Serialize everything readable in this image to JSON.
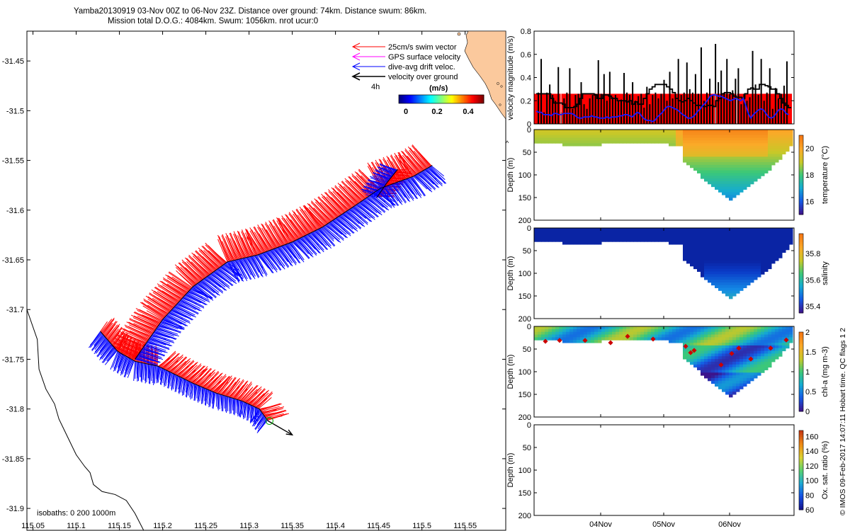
{
  "header": {
    "line1": "Yamba20130919 03-Nov 00Z to 06-Nov 23Z. Distance over ground: 74km. Distance swum: 86km.",
    "line2": "Mission total D.O.G.: 4084km. Swum: 1056km. nrot ucur:0"
  },
  "footer_note": "© IMOS 09-Feb-2017 14:07:11 Hobart time. QC flags 1  2",
  "colors": {
    "swim": "#ff0000",
    "gps": "#ff00ff",
    "drift": "#0000ff",
    "ground": "#000000",
    "land": "#fbc99d",
    "vel_fill": "#ff0000"
  },
  "chart_data": [
    {
      "type": "line",
      "name": "map",
      "x_ticks": [
        "115.05",
        "115.1",
        "115.15",
        "115.2",
        "115.25",
        "115.3",
        "115.35",
        "115.4",
        "115.45",
        "115.5",
        "115.55"
      ],
      "y_ticks": [
        "-31.45",
        "-31.5",
        "-31.55",
        "-31.6",
        "-31.65",
        "-31.7",
        "-31.75",
        "-31.8",
        "-31.85",
        "-31.9"
      ],
      "xlim": [
        115.043,
        115.597
      ],
      "ylim": [
        -31.922,
        -31.42
      ],
      "legend": {
        "items": [
          "25cm/s swim vector",
          "GPS surface velocity",
          "dive-avg drift veloc.",
          "velocity over ground"
        ],
        "ref_label": "4h",
        "colorbar_label": "(m/s)",
        "colorbar_ticks": [
          "0",
          "0.2",
          "0.4"
        ]
      },
      "isobaths_label": "isobaths: 0   200   1000m",
      "track": [
        [
          115.195,
          -31.757
        ],
        [
          115.235,
          -31.774
        ],
        [
          115.262,
          -31.784
        ],
        [
          115.292,
          -31.792
        ],
        [
          115.312,
          -31.8
        ],
        [
          115.322,
          -31.812
        ]
      ],
      "track_west": [
        [
          115.128,
          -31.722
        ],
        [
          115.148,
          -31.742
        ],
        [
          115.168,
          -31.752
        ],
        [
          115.195,
          -31.757
        ]
      ],
      "track_main": [
        [
          115.168,
          -31.75
        ],
        [
          115.2,
          -31.71
        ],
        [
          115.235,
          -31.677
        ],
        [
          115.275,
          -31.652
        ],
        [
          115.31,
          -31.645
        ],
        [
          115.35,
          -31.632
        ],
        [
          115.385,
          -31.617
        ],
        [
          115.42,
          -31.597
        ],
        [
          115.452,
          -31.578
        ],
        [
          115.49,
          -31.566
        ],
        [
          115.512,
          -31.555
        ]
      ],
      "track_north": [
        [
          115.448,
          -31.587
        ],
        [
          115.46,
          -31.572
        ],
        [
          115.472,
          -31.559
        ]
      ],
      "ground_arrow": {
        "from": [
          115.322,
          -31.812
        ],
        "to": [
          115.35,
          -31.826
        ]
      },
      "coast": [
        [
          115.043,
          -31.7
        ],
        [
          115.055,
          -31.73
        ],
        [
          115.057,
          -31.76
        ],
        [
          115.065,
          -31.78
        ],
        [
          115.075,
          -31.795
        ],
        [
          115.08,
          -31.81
        ],
        [
          115.09,
          -31.828
        ],
        [
          115.1,
          -31.846
        ],
        [
          115.11,
          -31.858
        ],
        [
          115.116,
          -31.864
        ],
        [
          115.12,
          -31.876
        ],
        [
          115.13,
          -31.883
        ],
        [
          115.145,
          -31.886
        ],
        [
          115.158,
          -31.892
        ],
        [
          115.168,
          -31.905
        ],
        [
          115.178,
          -31.922
        ]
      ]
    },
    {
      "type": "bar",
      "name": "velocity-magnitude",
      "ylabel": "velocity magnitude (m/s)",
      "ylim": [
        0,
        0.8
      ],
      "y_ticks": [
        "0",
        "0.2",
        "0.4",
        "0.6",
        "0.8"
      ],
      "fill_level": 0.26,
      "bars": [
        0.27,
        0.56,
        0.1,
        0.27,
        0.34,
        0.25,
        0.2,
        0.49,
        0.1,
        0.22,
        0.27,
        0.48,
        0.13,
        0.25,
        0.26,
        0.36,
        0.17,
        0.13,
        0.22,
        0.25,
        0.26,
        0.55,
        0.26,
        0.43,
        0.2,
        0.45,
        0.23,
        0.25,
        0.2,
        0.21,
        0.44,
        0.27,
        0.25,
        0.36,
        0.2,
        0.24,
        0.26,
        0.14,
        0.32,
        0.17,
        0.25,
        0.27,
        0.22,
        0.26,
        0.38,
        0.2,
        0.45,
        0.22,
        0.26,
        0.56,
        0.25,
        0.27,
        0.53,
        0.3,
        0.27,
        0.43,
        0.26,
        0.66,
        0.2,
        0.27,
        0.39,
        0.25,
        0.69,
        0.36,
        0.46,
        0.27,
        0.56,
        0.26,
        0.29,
        0.39,
        0.48,
        0.17,
        0.26,
        0.2,
        0.23,
        0.63,
        0.34,
        0.25,
        0.56,
        0.2,
        0.27,
        0.48,
        0.13,
        0.31,
        0.22,
        0.26,
        0.33,
        0.54
      ],
      "ground_speed": [
        0.26,
        0.26,
        0.26,
        0.26,
        0.26,
        0.22,
        0.18,
        0.18,
        0.18,
        0.17,
        0.14,
        0.14,
        0.14,
        0.15,
        0.17,
        0.22,
        0.26,
        0.26,
        0.26,
        0.26,
        0.25,
        0.22,
        0.22,
        0.25,
        0.25,
        0.24,
        0.22,
        0.22,
        0.2,
        0.2,
        0.2,
        0.19,
        0.2,
        0.17,
        0.19,
        0.17,
        0.17,
        0.22,
        0.26,
        0.3,
        0.32,
        0.34,
        0.34,
        0.34,
        0.34,
        0.32,
        0.3,
        0.27,
        0.22,
        0.2,
        0.19,
        0.2,
        0.22,
        0.2,
        0.18,
        0.16,
        0.16,
        0.15,
        0.15,
        0.16,
        0.16,
        0.15,
        0.2,
        0.22,
        0.26,
        0.27,
        0.27,
        0.26,
        0.24,
        0.23,
        0.23,
        0.22,
        0.26,
        0.3,
        0.31,
        0.3,
        0.3,
        0.34,
        0.34,
        0.33,
        0.32,
        0.3,
        0.3,
        0.26,
        0.22,
        0.18,
        0.16,
        0.14
      ],
      "drift_speed": [
        0.11,
        0.1,
        0.1,
        0.08,
        0.08,
        0.08,
        0.07,
        0.09,
        0.09,
        0.08,
        0.08,
        0.09,
        0.09,
        0.09,
        0.09,
        0.08,
        0.06,
        0.05,
        0.05,
        0.06,
        0.06,
        0.06,
        0.07,
        0.06,
        0.06,
        0.05,
        0.05,
        0.05,
        0.06,
        0.05,
        0.06,
        0.06,
        0.06,
        0.07,
        0.07,
        0.08,
        0.08,
        0.07,
        0.06,
        0.08,
        0.1,
        0.09,
        0.06,
        0.04,
        0.03,
        0.03,
        0.02,
        0.03,
        0.06,
        0.08,
        0.1,
        0.13,
        0.15,
        0.15,
        0.14,
        0.13,
        0.12,
        0.1,
        0.08,
        0.07,
        0.05,
        0.05,
        0.06,
        0.08,
        0.11,
        0.13,
        0.16,
        0.18,
        0.21,
        0.24,
        0.25,
        0.25,
        0.24,
        0.24,
        0.23,
        0.22,
        0.21,
        0.2,
        0.21,
        0.22,
        0.21,
        0.2,
        0.22,
        0.16,
        0.09,
        0.05,
        0.08,
        0.1,
        0.12,
        0.13,
        0.12,
        0.09,
        0.06,
        0.05,
        0.06,
        0.09,
        0.12,
        0.13,
        0.12,
        0.09,
        0.08
      ]
    },
    {
      "type": "heatmap",
      "name": "temperature",
      "ylabel": "Depth (m)",
      "colorbar_label": "temperature (°C)",
      "ylim": [
        200,
        0
      ],
      "y_ticks": [
        "0",
        "50",
        "100",
        "150",
        "200"
      ],
      "cbar_ticks": [
        "16",
        "18",
        "20"
      ],
      "cbar_range": [
        15.0,
        21.0
      ]
    },
    {
      "type": "heatmap",
      "name": "salinity",
      "ylabel": "Depth (m)",
      "colorbar_label": "salinity",
      "ylim": [
        200,
        0
      ],
      "y_ticks": [
        "0",
        "50",
        "100",
        "150",
        "200"
      ],
      "cbar_ticks": [
        "35.4",
        "35.6",
        "35.8"
      ],
      "cbar_range": [
        35.35,
        35.95
      ]
    },
    {
      "type": "heatmap",
      "name": "chl-a",
      "ylabel": "Depth (m)",
      "colorbar_label": "chl-a (mg m-3)",
      "ylim": [
        200,
        0
      ],
      "y_ticks": [
        "0",
        "50",
        "100",
        "150",
        "200"
      ],
      "cbar_ticks": [
        "0",
        "0.5",
        "1",
        "1.5",
        "2"
      ],
      "cbar_range": [
        0,
        2
      ]
    },
    {
      "type": "heatmap",
      "name": "oxygen-saturation",
      "ylabel": "Depth (m)",
      "colorbar_label": "Ox. sat. ratio (%)",
      "ylim": [
        200,
        0
      ],
      "y_ticks": [
        "0",
        "50",
        "100",
        "150",
        "200"
      ],
      "cbar_ticks": [
        "60",
        "80",
        "100",
        "120",
        "140",
        "160"
      ],
      "cbar_range": [
        60,
        168
      ]
    }
  ],
  "time_axis": {
    "ticks": [
      "04Nov",
      "05Nov",
      "06Nov"
    ]
  }
}
